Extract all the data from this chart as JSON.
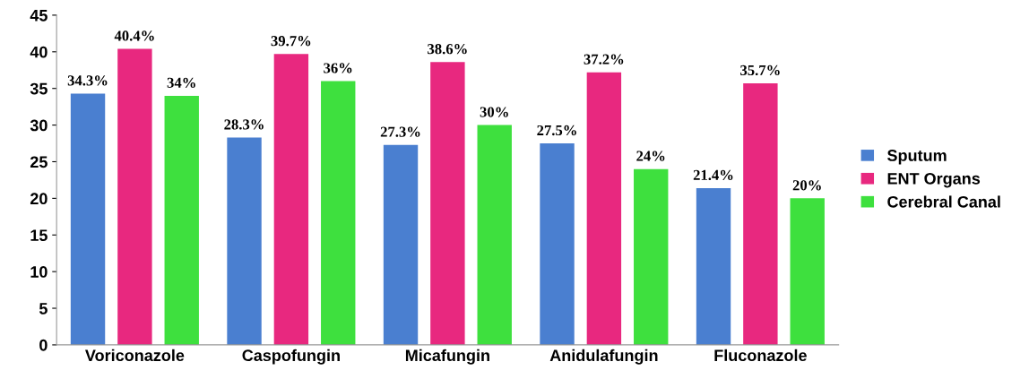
{
  "chart_data": {
    "type": "bar",
    "categories": [
      "Voriconazole",
      "Caspofungin",
      "Micafungin",
      "Anidulafungin",
      "Fluconazole"
    ],
    "series": [
      {
        "name": "Sputum",
        "color": "#4a7fd0",
        "values": [
          34.3,
          28.3,
          27.3,
          27.5,
          21.4
        ],
        "value_labels": [
          "34.3%",
          "28.3%",
          "27.3%",
          "27.5%",
          "21.4%"
        ]
      },
      {
        "name": "ENT Organs",
        "color": "#e8287f",
        "values": [
          40.4,
          39.7,
          38.6,
          37.2,
          35.7
        ],
        "value_labels": [
          "40.4%",
          "39.7%",
          "38.6%",
          "37.2%",
          "35.7%"
        ]
      },
      {
        "name": "Cerebral Canal",
        "color": "#3ee03e",
        "values": [
          34,
          36,
          30,
          24,
          20
        ],
        "value_labels": [
          "34%",
          "36%",
          "30%",
          "24%",
          "20%"
        ]
      }
    ],
    "ylim": [
      0,
      45
    ],
    "yticks": [
      0,
      5,
      10,
      15,
      20,
      25,
      30,
      35,
      40,
      45
    ],
    "grid": false,
    "legend": "right"
  }
}
